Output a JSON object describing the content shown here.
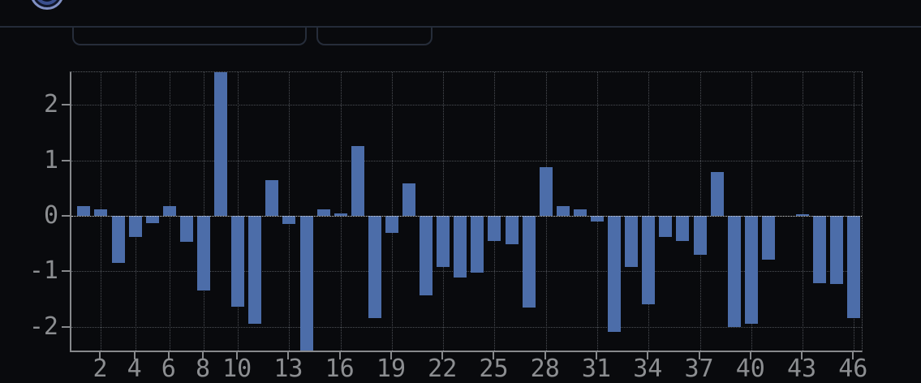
{
  "header": {
    "logo_icon": "partial-circle-logo",
    "controls": [
      {
        "name": "pill-control-left",
        "label": ""
      },
      {
        "name": "pill-control-right",
        "label": ""
      }
    ]
  },
  "colors": {
    "background": "#090a0d",
    "bar": "#4c6da9",
    "axis_spine": "#87898c",
    "grid": "#4c4f55",
    "zero_line": "#d9dadb",
    "tick_label": "#8c8e91",
    "panel_border": "#262d3a",
    "logo_outer": "#8191c4",
    "logo_inner": "#3a4f8e"
  },
  "chart_data": {
    "type": "bar",
    "title": "",
    "xlabel": "",
    "ylabel": "",
    "x": [
      1,
      2,
      3,
      4,
      5,
      6,
      7,
      8,
      9,
      10,
      11,
      12,
      13,
      14,
      15,
      16,
      17,
      18,
      19,
      20,
      21,
      22,
      23,
      24,
      25,
      26,
      27,
      28,
      29,
      30,
      31,
      32,
      33,
      34,
      35,
      36,
      37,
      38,
      39,
      40,
      41,
      42,
      43,
      44,
      45,
      46
    ],
    "values": [
      0.18,
      0.12,
      -0.85,
      -0.38,
      -0.13,
      0.18,
      -0.47,
      -1.35,
      2.59,
      -1.64,
      -1.95,
      0.64,
      -0.14,
      -2.43,
      0.12,
      0.05,
      1.26,
      -1.84,
      -0.31,
      0.59,
      -1.44,
      -0.92,
      -1.12,
      -1.03,
      -0.45,
      -0.52,
      -1.66,
      0.88,
      0.18,
      0.12,
      -0.11,
      -2.09,
      -0.92,
      -1.59,
      -0.38,
      -0.45,
      -0.71,
      0.79,
      -2.01,
      -1.95,
      -0.79,
      0.0,
      0.03,
      -1.22,
      -1.23,
      -1.85
    ],
    "xtick_labels": [
      "2",
      "4",
      "6",
      "8",
      "10",
      "13",
      "16",
      "19",
      "22",
      "25",
      "28",
      "31",
      "34",
      "37",
      "40",
      "43",
      "46"
    ],
    "xticks": [
      2,
      4,
      6,
      8,
      10,
      13,
      16,
      19,
      22,
      25,
      28,
      31,
      34,
      37,
      40,
      43,
      46
    ],
    "ytick_labels": [
      "2",
      "1",
      "0",
      "-1",
      "-2"
    ],
    "yticks": [
      2,
      1,
      0,
      -1,
      -2
    ],
    "xlim": [
      0.27,
      46.46
    ],
    "ylim": [
      -2.43,
      2.59
    ],
    "grid": true,
    "grid_style": "dotted",
    "legend": false,
    "zero_line": true
  }
}
